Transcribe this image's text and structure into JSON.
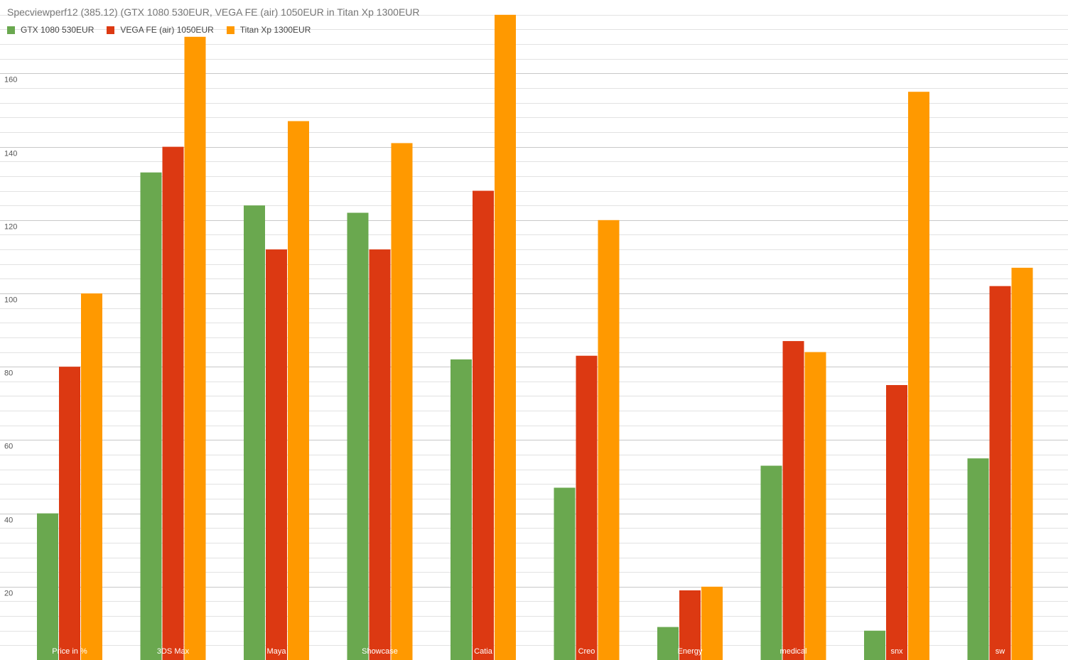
{
  "chart_data": {
    "type": "bar",
    "title": "Specviewperf12 (385.12)  (GTX 1080 530EUR, VEGA FE (air) 1050EUR in Titan Xp 1300EUR",
    "xlabel": "",
    "ylabel": "",
    "categories": [
      "Price in %",
      "3DS Max",
      "Maya",
      "Showcase",
      "Catia",
      "Creo",
      "Energy",
      "medical",
      "snx",
      "sw"
    ],
    "series": [
      {
        "name": "GTX 1080 530EUR",
        "color": "#6aa84f",
        "values": [
          40,
          133,
          124,
          122,
          82,
          47,
          9,
          53,
          8,
          55
        ]
      },
      {
        "name": "VEGA FE (air) 1050EUR",
        "color": "#dc3912",
        "values": [
          80,
          140,
          112,
          112,
          128,
          83,
          19,
          87,
          75,
          102
        ]
      },
      {
        "name": "Titan Xp 1300EUR",
        "color": "#ff9900",
        "values": [
          100,
          170,
          147,
          141,
          176,
          120,
          20,
          84,
          155,
          107
        ]
      }
    ],
    "ylim": [
      0,
      176
    ],
    "yticks": [
      20,
      40,
      60,
      80,
      100,
      120,
      140,
      160
    ],
    "minor_grid_step": 4,
    "grid": true,
    "legend_position": "top-left",
    "category_labels_inside_bars": true
  }
}
